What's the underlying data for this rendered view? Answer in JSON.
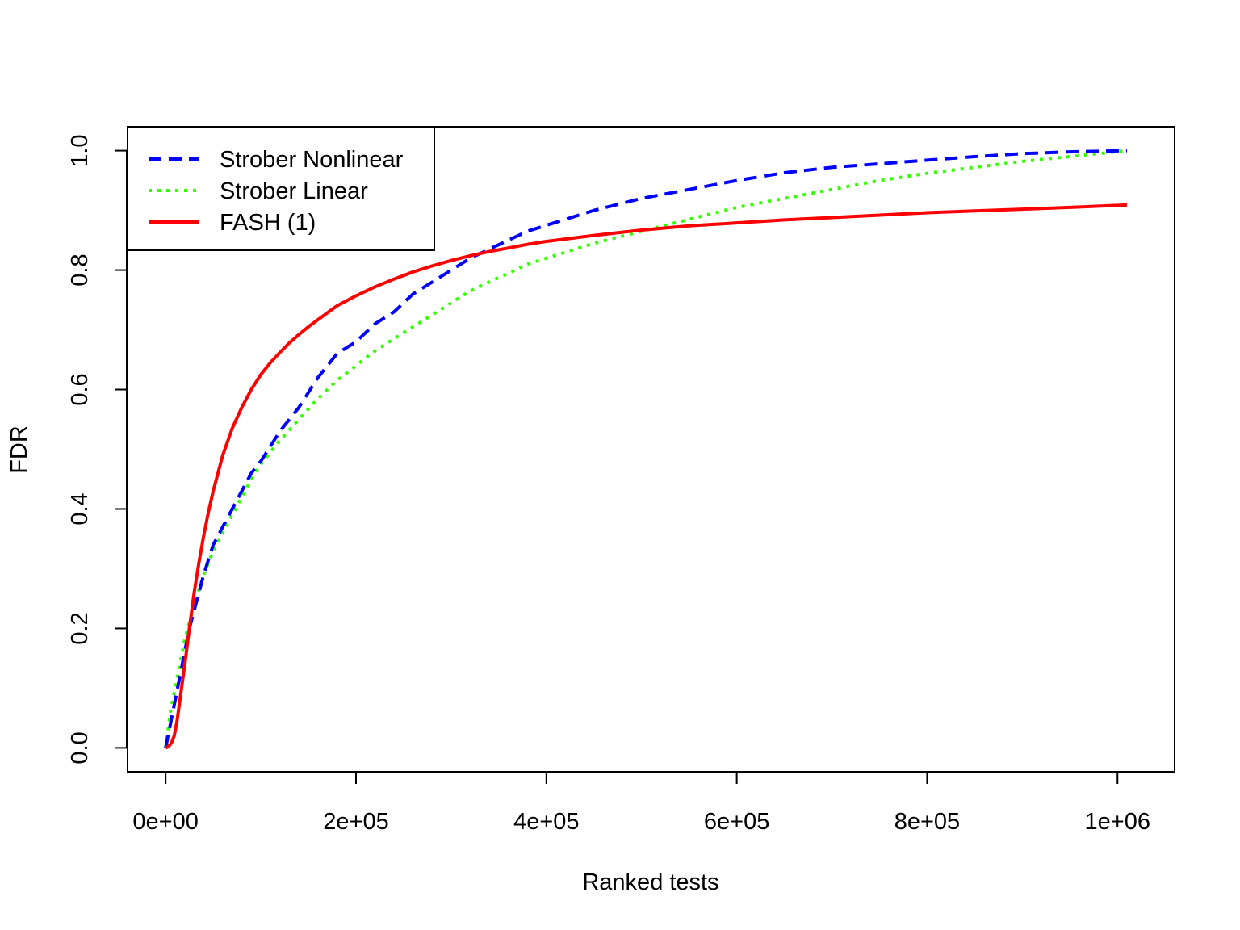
{
  "chart_data": {
    "type": "line",
    "title": "",
    "xlabel": "Ranked tests",
    "ylabel": "FDR",
    "xlim": [
      -40000,
      1060000
    ],
    "ylim": [
      -0.04,
      1.04
    ],
    "x_ticks": [
      0,
      200000,
      400000,
      600000,
      800000,
      1000000
    ],
    "x_tick_labels": [
      "0e+00",
      "2e+05",
      "4e+05",
      "6e+05",
      "8e+05",
      "1e+06"
    ],
    "y_ticks": [
      0,
      0.2,
      0.4,
      0.6,
      0.8,
      1.0
    ],
    "y_tick_labels": [
      "0.0",
      "0.2",
      "0.4",
      "0.6",
      "0.8",
      "1.0"
    ],
    "grid": false,
    "legend_position": "top-left",
    "series": [
      {
        "name": "Strober Nonlinear",
        "color": "#0000ff",
        "line_style": "dashed",
        "x": [
          0,
          5000,
          10000,
          15000,
          20000,
          25000,
          30000,
          40000,
          50000,
          60000,
          70000,
          80000,
          90000,
          100000,
          120000,
          140000,
          160000,
          180000,
          200000,
          220000,
          240000,
          260000,
          280000,
          300000,
          320000,
          340000,
          360000,
          380000,
          400000,
          450000,
          500000,
          550000,
          600000,
          650000,
          700000,
          750000,
          800000,
          850000,
          900000,
          950000,
          1010000
        ],
        "y": [
          0.0,
          0.04,
          0.08,
          0.12,
          0.16,
          0.2,
          0.23,
          0.29,
          0.34,
          0.37,
          0.4,
          0.43,
          0.46,
          0.48,
          0.53,
          0.57,
          0.62,
          0.66,
          0.68,
          0.71,
          0.73,
          0.76,
          0.78,
          0.8,
          0.82,
          0.835,
          0.85,
          0.865,
          0.875,
          0.9,
          0.92,
          0.935,
          0.95,
          0.963,
          0.972,
          0.978,
          0.984,
          0.99,
          0.995,
          0.998,
          1.0
        ]
      },
      {
        "name": "Strober Linear",
        "color": "#33ff00",
        "line_style": "dotted",
        "x": [
          0,
          5000,
          10000,
          15000,
          20000,
          25000,
          30000,
          40000,
          50000,
          60000,
          70000,
          80000,
          90000,
          100000,
          120000,
          140000,
          160000,
          180000,
          200000,
          220000,
          240000,
          260000,
          280000,
          300000,
          320000,
          340000,
          360000,
          380000,
          400000,
          450000,
          500000,
          550000,
          600000,
          650000,
          700000,
          750000,
          800000,
          850000,
          900000,
          950000,
          1010000
        ],
        "y": [
          0.0,
          0.06,
          0.1,
          0.14,
          0.18,
          0.21,
          0.24,
          0.29,
          0.33,
          0.36,
          0.39,
          0.42,
          0.45,
          0.475,
          0.515,
          0.55,
          0.585,
          0.615,
          0.64,
          0.665,
          0.685,
          0.705,
          0.725,
          0.745,
          0.765,
          0.78,
          0.795,
          0.81,
          0.82,
          0.845,
          0.865,
          0.885,
          0.905,
          0.92,
          0.935,
          0.95,
          0.962,
          0.972,
          0.982,
          0.99,
          1.0
        ]
      },
      {
        "name": "FASH (1)",
        "color": "#ff0000",
        "line_style": "solid",
        "x": [
          0,
          3000,
          6000,
          9000,
          12000,
          15000,
          18000,
          21000,
          25000,
          30000,
          35000,
          40000,
          45000,
          50000,
          55000,
          60000,
          70000,
          80000,
          90000,
          100000,
          110000,
          120000,
          130000,
          140000,
          150000,
          160000,
          180000,
          200000,
          220000,
          240000,
          260000,
          280000,
          300000,
          320000,
          340000,
          360000,
          380000,
          400000,
          450000,
          500000,
          550000,
          600000,
          650000,
          700000,
          750000,
          800000,
          850000,
          900000,
          950000,
          1010000
        ],
        "y": [
          0.0,
          0.002,
          0.008,
          0.02,
          0.045,
          0.08,
          0.115,
          0.15,
          0.2,
          0.26,
          0.31,
          0.355,
          0.395,
          0.43,
          0.46,
          0.49,
          0.535,
          0.57,
          0.6,
          0.625,
          0.645,
          0.662,
          0.678,
          0.692,
          0.705,
          0.717,
          0.74,
          0.757,
          0.772,
          0.785,
          0.797,
          0.807,
          0.816,
          0.824,
          0.831,
          0.837,
          0.843,
          0.848,
          0.858,
          0.867,
          0.874,
          0.879,
          0.884,
          0.888,
          0.892,
          0.896,
          0.899,
          0.902,
          0.905,
          0.909
        ]
      }
    ]
  }
}
